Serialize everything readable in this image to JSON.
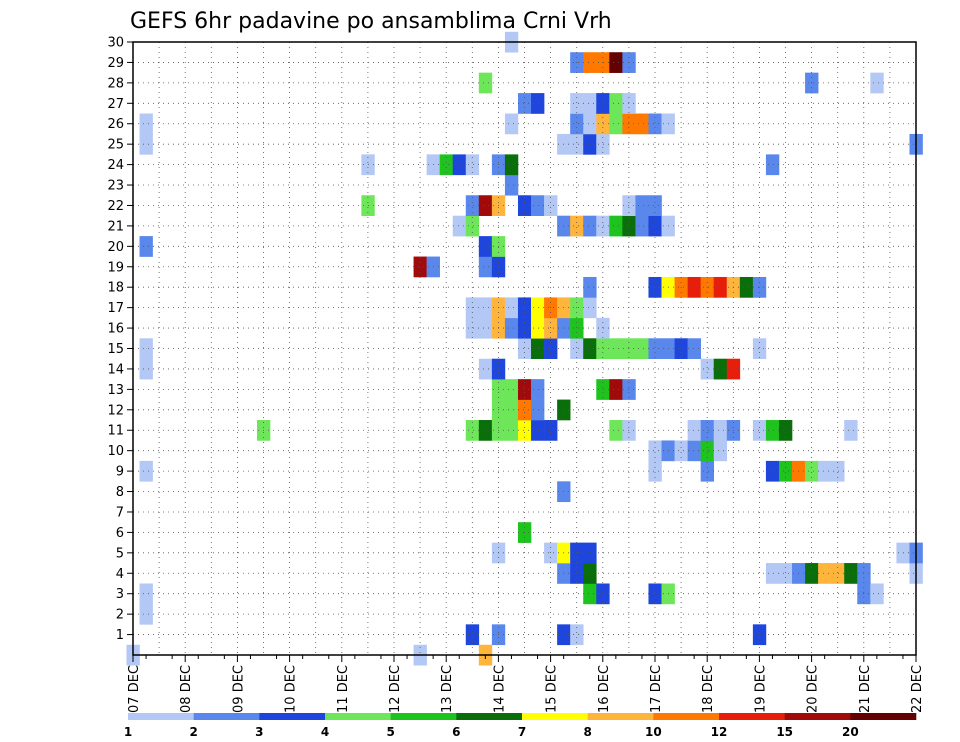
{
  "chart_data": {
    "type": "heatmap",
    "title": "GEFS 6hr padavine po ansamblima Crni Vrh",
    "xlabel": "",
    "ylabel": "",
    "x_ticks": [
      "07 DEC",
      "08 DEC",
      "09 DEC",
      "10 DEC",
      "11 DEC",
      "12 DEC",
      "13 DEC",
      "14 DEC",
      "15 DEC",
      "16 DEC",
      "17 DEC",
      "18 DEC",
      "19 DEC",
      "20 DEC",
      "21 DEC",
      "22 DEC"
    ],
    "y_ticks": [
      "1",
      "2",
      "3",
      "4",
      "5",
      "6",
      "7",
      "8",
      "9",
      "10",
      "11",
      "12",
      "13",
      "14",
      "15",
      "16",
      "17",
      "18",
      "19",
      "20",
      "21",
      "22",
      "23",
      "24",
      "25",
      "26",
      "27",
      "28",
      "29",
      "30"
    ],
    "ylim": [
      0,
      30
    ],
    "grid": true,
    "levels": [
      1,
      2,
      3,
      4,
      5,
      6,
      7,
      8,
      10,
      12,
      15,
      20
    ],
    "level_labels": [
      "1",
      "2",
      "3",
      "4",
      "5",
      "6",
      "7",
      "8",
      "10",
      "12",
      "15",
      "20"
    ],
    "colors": [
      "#b4c8f5",
      "#5a87eb",
      "#1e46dc",
      "#6ee65a",
      "#1ec31e",
      "#0a6e0a",
      "#ffff00",
      "#ffb43c",
      "#ff7800",
      "#e61e0a",
      "#a00a0a",
      "#640000"
    ],
    "cell_note": "rows: member index 0..30 (0 = control), columns: 6-hour steps from 07 DEC, value = color class 1..12",
    "rows": [
      {
        "member": 0,
        "cells": [
          [
            0,
            1
          ],
          [
            22,
            1
          ],
          [
            27,
            8
          ]
        ]
      },
      {
        "member": 1,
        "cells": [
          [
            26,
            3
          ],
          [
            28,
            2
          ],
          [
            33,
            3
          ],
          [
            34,
            1
          ],
          [
            48,
            3
          ]
        ]
      },
      {
        "member": 2,
        "cells": [
          [
            1,
            1
          ]
        ]
      },
      {
        "member": 3,
        "cells": [
          [
            1,
            1
          ],
          [
            35,
            5
          ],
          [
            36,
            3
          ],
          [
            40,
            3
          ],
          [
            41,
            4
          ],
          [
            56,
            2
          ],
          [
            57,
            1
          ]
        ]
      },
      {
        "member": 4,
        "cells": [
          [
            33,
            2
          ],
          [
            34,
            3
          ],
          [
            35,
            6
          ],
          [
            49,
            1
          ],
          [
            50,
            1
          ],
          [
            51,
            2
          ],
          [
            52,
            6
          ],
          [
            53,
            8
          ],
          [
            54,
            8
          ],
          [
            55,
            6
          ],
          [
            56,
            2
          ],
          [
            60,
            1
          ]
        ]
      },
      {
        "member": 5,
        "cells": [
          [
            28,
            1
          ],
          [
            32,
            1
          ],
          [
            33,
            7
          ],
          [
            34,
            3
          ],
          [
            35,
            3
          ],
          [
            59,
            1
          ],
          [
            60,
            2
          ]
        ]
      },
      {
        "member": 6,
        "cells": [
          [
            30,
            5
          ]
        ]
      },
      {
        "member": 8,
        "cells": [
          [
            33,
            2
          ]
        ]
      },
      {
        "member": 9,
        "cells": [
          [
            1,
            1
          ],
          [
            40,
            1
          ],
          [
            44,
            2
          ],
          [
            49,
            3
          ],
          [
            50,
            5
          ],
          [
            51,
            9
          ],
          [
            52,
            4
          ],
          [
            53,
            1
          ],
          [
            54,
            1
          ]
        ]
      },
      {
        "member": 10,
        "cells": [
          [
            40,
            1
          ],
          [
            41,
            2
          ],
          [
            42,
            1
          ],
          [
            43,
            2
          ],
          [
            44,
            5
          ],
          [
            45,
            1
          ]
        ]
      },
      {
        "member": 11,
        "cells": [
          [
            10,
            4
          ],
          [
            26,
            4
          ],
          [
            27,
            6
          ],
          [
            28,
            4
          ],
          [
            29,
            4
          ],
          [
            30,
            7
          ],
          [
            31,
            3
          ],
          [
            32,
            3
          ],
          [
            37,
            4
          ],
          [
            38,
            1
          ],
          [
            43,
            1
          ],
          [
            44,
            2
          ],
          [
            45,
            1
          ],
          [
            46,
            2
          ],
          [
            48,
            1
          ],
          [
            49,
            5
          ],
          [
            50,
            6
          ],
          [
            55,
            1
          ]
        ]
      },
      {
        "member": 12,
        "cells": [
          [
            28,
            4
          ],
          [
            29,
            4
          ],
          [
            30,
            9
          ],
          [
            31,
            2
          ],
          [
            33,
            6
          ]
        ]
      },
      {
        "member": 13,
        "cells": [
          [
            28,
            4
          ],
          [
            29,
            4
          ],
          [
            30,
            11
          ],
          [
            31,
            2
          ],
          [
            36,
            5
          ],
          [
            37,
            11
          ],
          [
            38,
            2
          ]
        ]
      },
      {
        "member": 14,
        "cells": [
          [
            1,
            1
          ],
          [
            27,
            1
          ],
          [
            28,
            3
          ],
          [
            44,
            1
          ],
          [
            45,
            6
          ],
          [
            46,
            10
          ]
        ]
      },
      {
        "member": 15,
        "cells": [
          [
            1,
            1
          ],
          [
            30,
            1
          ],
          [
            31,
            6
          ],
          [
            32,
            3
          ],
          [
            34,
            1
          ],
          [
            35,
            6
          ],
          [
            36,
            4
          ],
          [
            37,
            4
          ],
          [
            38,
            4
          ],
          [
            39,
            4
          ],
          [
            40,
            2
          ],
          [
            41,
            2
          ],
          [
            42,
            3
          ],
          [
            43,
            2
          ],
          [
            48,
            1
          ]
        ]
      },
      {
        "member": 16,
        "cells": [
          [
            26,
            1
          ],
          [
            27,
            1
          ],
          [
            28,
            8
          ],
          [
            29,
            2
          ],
          [
            30,
            3
          ],
          [
            31,
            7
          ],
          [
            32,
            8
          ],
          [
            33,
            2
          ],
          [
            34,
            5
          ],
          [
            36,
            1
          ]
        ]
      },
      {
        "member": 17,
        "cells": [
          [
            26,
            1
          ],
          [
            27,
            1
          ],
          [
            28,
            8
          ],
          [
            29,
            1
          ],
          [
            30,
            3
          ],
          [
            31,
            7
          ],
          [
            32,
            9
          ],
          [
            33,
            8
          ],
          [
            34,
            4
          ],
          [
            35,
            1
          ]
        ]
      },
      {
        "member": 18,
        "cells": [
          [
            35,
            2
          ],
          [
            40,
            3
          ],
          [
            41,
            7
          ],
          [
            42,
            9
          ],
          [
            43,
            10
          ],
          [
            44,
            9
          ],
          [
            45,
            10
          ],
          [
            46,
            8
          ],
          [
            47,
            6
          ],
          [
            48,
            2
          ]
        ]
      },
      {
        "member": 19,
        "cells": [
          [
            22,
            11
          ],
          [
            23,
            2
          ],
          [
            27,
            2
          ],
          [
            28,
            3
          ]
        ]
      },
      {
        "member": 20,
        "cells": [
          [
            1,
            2
          ],
          [
            27,
            3
          ],
          [
            28,
            4
          ]
        ]
      },
      {
        "member": 21,
        "cells": [
          [
            25,
            1
          ],
          [
            26,
            4
          ],
          [
            33,
            2
          ],
          [
            34,
            8
          ],
          [
            35,
            2
          ],
          [
            36,
            1
          ],
          [
            37,
            5
          ],
          [
            38,
            6
          ],
          [
            39,
            2
          ],
          [
            40,
            3
          ],
          [
            41,
            1
          ]
        ]
      },
      {
        "member": 22,
        "cells": [
          [
            18,
            4
          ],
          [
            26,
            2
          ],
          [
            27,
            11
          ],
          [
            28,
            8
          ],
          [
            30,
            3
          ],
          [
            31,
            2
          ],
          [
            32,
            1
          ],
          [
            38,
            1
          ],
          [
            39,
            2
          ],
          [
            40,
            2
          ]
        ]
      },
      {
        "member": 23,
        "cells": [
          [
            29,
            2
          ]
        ]
      },
      {
        "member": 24,
        "cells": [
          [
            18,
            1
          ],
          [
            23,
            1
          ],
          [
            24,
            5
          ],
          [
            25,
            3
          ],
          [
            26,
            1
          ],
          [
            28,
            2
          ],
          [
            29,
            6
          ],
          [
            49,
            2
          ]
        ]
      },
      {
        "member": 25,
        "cells": [
          [
            1,
            1
          ],
          [
            33,
            1
          ],
          [
            34,
            1
          ],
          [
            35,
            3
          ],
          [
            36,
            1
          ],
          [
            60,
            2
          ]
        ]
      },
      {
        "member": 26,
        "cells": [
          [
            1,
            1
          ],
          [
            29,
            1
          ],
          [
            34,
            2
          ],
          [
            35,
            1
          ],
          [
            36,
            8
          ],
          [
            37,
            4
          ],
          [
            38,
            9
          ],
          [
            39,
            9
          ],
          [
            40,
            2
          ],
          [
            41,
            1
          ]
        ]
      },
      {
        "member": 27,
        "cells": [
          [
            30,
            2
          ],
          [
            31,
            3
          ],
          [
            34,
            1
          ],
          [
            35,
            1
          ],
          [
            36,
            3
          ],
          [
            37,
            4
          ],
          [
            38,
            1
          ]
        ]
      },
      {
        "member": 28,
        "cells": [
          [
            27,
            4
          ],
          [
            52,
            2
          ],
          [
            57,
            1
          ]
        ]
      },
      {
        "member": 29,
        "cells": [
          [
            34,
            2
          ],
          [
            35,
            9
          ],
          [
            36,
            9
          ],
          [
            37,
            12
          ],
          [
            38,
            2
          ]
        ]
      },
      {
        "member": 30,
        "cells": [
          [
            29,
            1
          ]
        ]
      }
    ]
  }
}
